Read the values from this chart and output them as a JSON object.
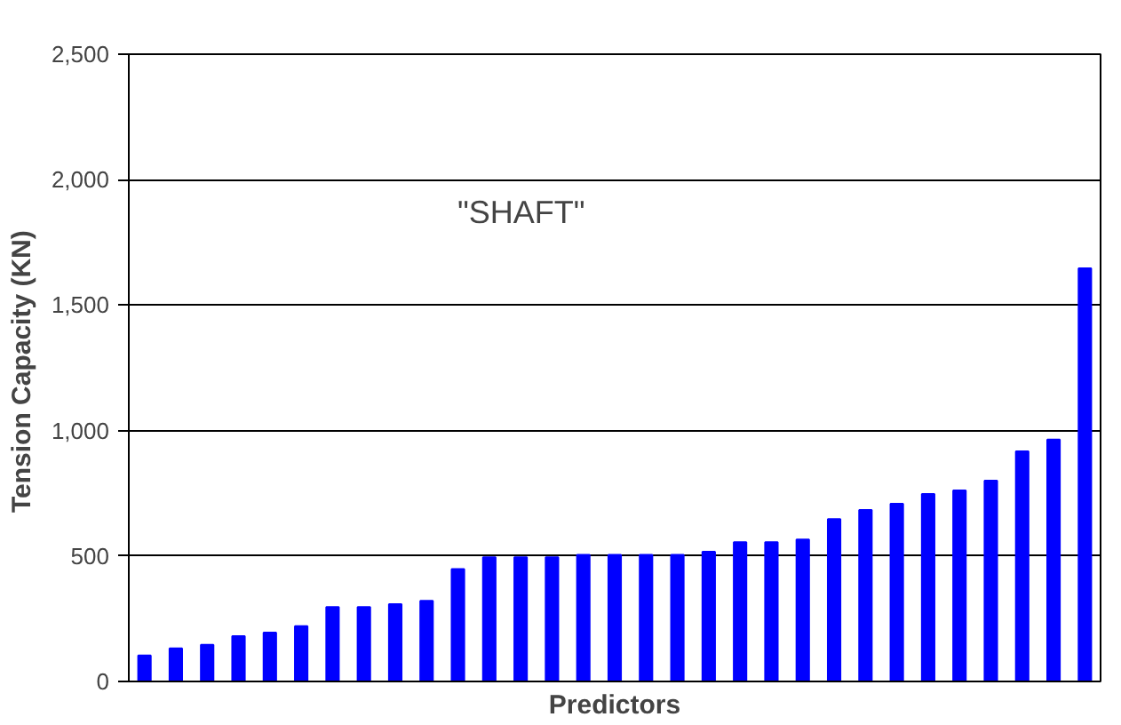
{
  "chart_data": {
    "type": "bar",
    "categories": [
      null,
      null,
      null,
      null,
      null,
      null,
      null,
      null,
      null,
      null,
      null,
      null,
      null,
      null,
      null,
      null,
      null,
      null,
      null,
      null,
      null,
      null,
      null,
      null,
      null,
      null,
      null,
      null,
      null,
      null,
      null
    ],
    "values": [
      104,
      132,
      146,
      181,
      195,
      220,
      297,
      297,
      308,
      321,
      448,
      495,
      495,
      495,
      505,
      505,
      505,
      505,
      517,
      555,
      555,
      566,
      647,
      683,
      708,
      747,
      761,
      800,
      917,
      964,
      1647
    ],
    "color": "#0000ff",
    "ylim": [
      0,
      2500
    ],
    "yticks": [
      {
        "value": 0,
        "label": "0"
      },
      {
        "value": 500,
        "label": "500"
      },
      {
        "value": 1000,
        "label": "1,000"
      },
      {
        "value": 1500,
        "label": "1,500"
      },
      {
        "value": 2000,
        "label": "2,000"
      },
      {
        "value": 2500,
        "label": "2,500"
      }
    ],
    "grid": "y",
    "xlabel": "Predictors",
    "ylabel": "Tension Capacity  (KN)",
    "annotations": [
      "\"SHAFT\""
    ]
  }
}
